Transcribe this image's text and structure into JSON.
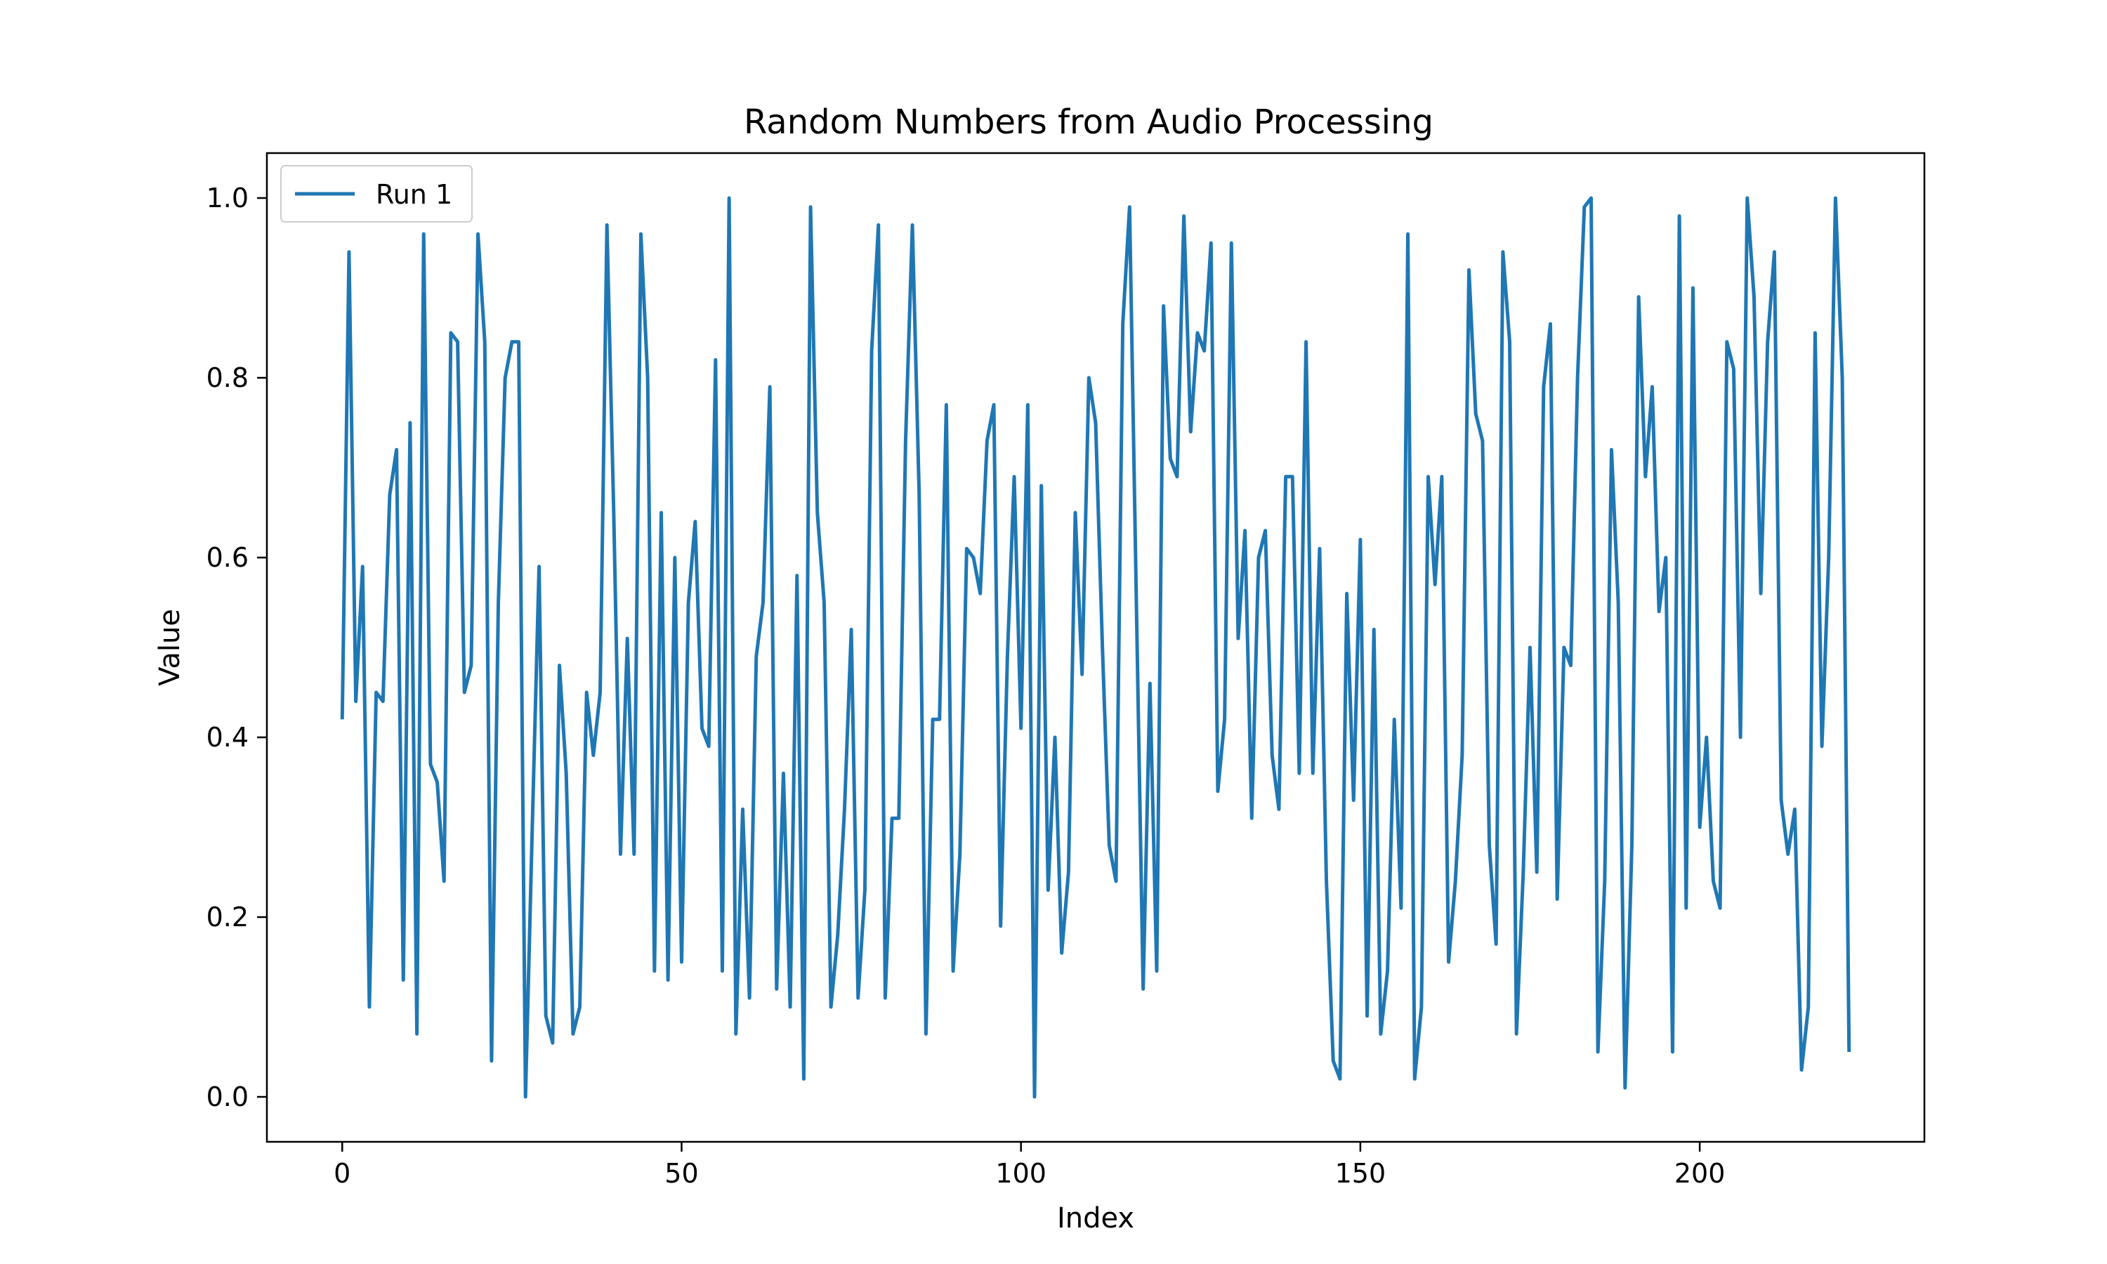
{
  "chart_data": {
    "type": "line",
    "title": "Random Numbers from Audio Processing",
    "xlabel": "Index",
    "ylabel": "Value",
    "xlim": [
      -11.1,
      233.1
    ],
    "ylim": [
      -0.05,
      1.05
    ],
    "xticks": [
      0,
      50,
      100,
      150,
      200
    ],
    "xtick_labels": [
      "0",
      "50",
      "100",
      "150",
      "200"
    ],
    "yticks": [
      0.0,
      0.2,
      0.4,
      0.6,
      0.8,
      1.0
    ],
    "ytick_labels": [
      "0.0",
      "0.2",
      "0.4",
      "0.6",
      "0.8",
      "1.0"
    ],
    "grid": false,
    "legend_position": "top-left",
    "series": [
      {
        "name": "Run 1",
        "color": "#1f77b4",
        "values": [
          0.42,
          0.94,
          0.44,
          0.59,
          0.1,
          0.45,
          0.44,
          0.67,
          0.72,
          0.13,
          0.75,
          0.07,
          0.96,
          0.37,
          0.35,
          0.24,
          0.85,
          0.84,
          0.45,
          0.48,
          0.96,
          0.84,
          0.04,
          0.55,
          0.8,
          0.84,
          0.84,
          0.0,
          0.3,
          0.59,
          0.09,
          0.06,
          0.48,
          0.36,
          0.07,
          0.1,
          0.45,
          0.38,
          0.45,
          0.97,
          0.65,
          0.27,
          0.51,
          0.27,
          0.96,
          0.8,
          0.14,
          0.65,
          0.13,
          0.6,
          0.15,
          0.55,
          0.64,
          0.41,
          0.39,
          0.82,
          0.14,
          1.0,
          0.07,
          0.32,
          0.11,
          0.49,
          0.55,
          0.79,
          0.12,
          0.36,
          0.1,
          0.58,
          0.02,
          0.99,
          0.65,
          0.55,
          0.1,
          0.18,
          0.32,
          0.52,
          0.11,
          0.23,
          0.83,
          0.97,
          0.11,
          0.31,
          0.31,
          0.73,
          0.97,
          0.67,
          0.07,
          0.42,
          0.42,
          0.77,
          0.14,
          0.27,
          0.61,
          0.6,
          0.56,
          0.73,
          0.77,
          0.19,
          0.49,
          0.69,
          0.41,
          0.77,
          0.0,
          0.68,
          0.23,
          0.4,
          0.16,
          0.25,
          0.65,
          0.47,
          0.8,
          0.75,
          0.5,
          0.28,
          0.24,
          0.86,
          0.99,
          0.55,
          0.12,
          0.46,
          0.14,
          0.88,
          0.71,
          0.69,
          0.98,
          0.74,
          0.85,
          0.83,
          0.95,
          0.34,
          0.42,
          0.95,
          0.51,
          0.63,
          0.31,
          0.6,
          0.63,
          0.38,
          0.32,
          0.69,
          0.69,
          0.36,
          0.84,
          0.36,
          0.61,
          0.24,
          0.04,
          0.02,
          0.56,
          0.33,
          0.62,
          0.09,
          0.52,
          0.07,
          0.14,
          0.42,
          0.21,
          0.96,
          0.02,
          0.1,
          0.69,
          0.57,
          0.69,
          0.15,
          0.24,
          0.38,
          0.92,
          0.76,
          0.73,
          0.28,
          0.17,
          0.94,
          0.84,
          0.07,
          0.25,
          0.5,
          0.25,
          0.79,
          0.86,
          0.22,
          0.5,
          0.48,
          0.8,
          0.99,
          1.0,
          0.05,
          0.24,
          0.72,
          0.55,
          0.01,
          0.28,
          0.89,
          0.69,
          0.79,
          0.54,
          0.6,
          0.05,
          0.98,
          0.21,
          0.9,
          0.3,
          0.4,
          0.24,
          0.21,
          0.84,
          0.81,
          0.4,
          1.0,
          0.89,
          0.56,
          0.84,
          0.94,
          0.33,
          0.27,
          0.32,
          0.03,
          0.1,
          0.85,
          0.39,
          0.6,
          1.0,
          0.8,
          0.05
        ]
      }
    ]
  }
}
